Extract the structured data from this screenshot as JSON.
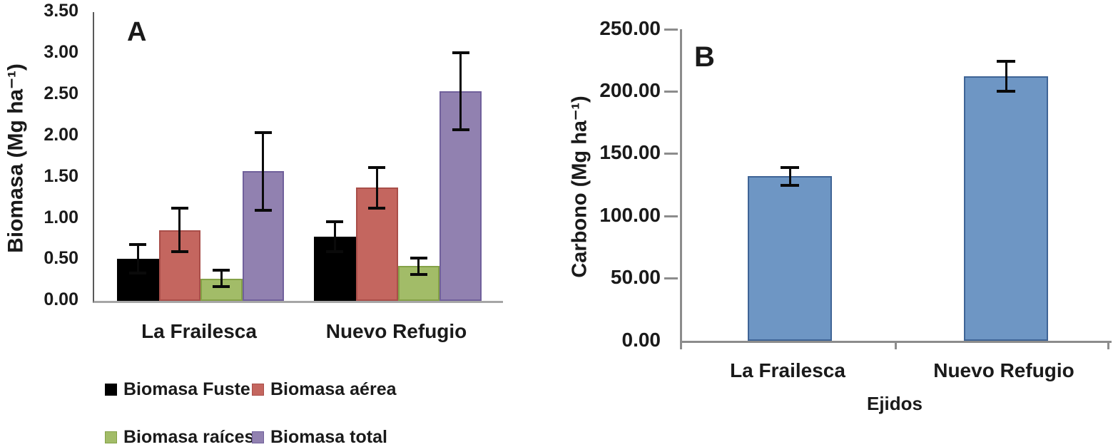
{
  "figure": {
    "background": "#ffffff",
    "text_color": "#1a1a1a"
  },
  "chart_data": [
    {
      "type": "bar",
      "panel_label": "A",
      "title": "",
      "ylabel": "Biomasa (Mg ha⁻¹)",
      "xlabel": "",
      "categories": [
        "La Frailesca",
        "Nuevo Refugio"
      ],
      "series": [
        {
          "name": "Biomasa Fuste",
          "color": "#000000",
          "border": "#000000",
          "values": [
            0.51,
            0.78
          ],
          "errors": [
            0.17,
            0.18
          ]
        },
        {
          "name": "Biomasa aérea",
          "color": "#C4665F",
          "border": "#A94E49",
          "values": [
            0.86,
            1.37
          ],
          "errors": [
            0.26,
            0.25
          ]
        },
        {
          "name": "Biomasa raíces",
          "color": "#A2BC68",
          "border": "#84A147",
          "values": [
            0.27,
            0.42
          ],
          "errors": [
            0.1,
            0.1
          ]
        },
        {
          "name": "Biomasa total",
          "color": "#9181B0",
          "border": "#70609B",
          "values": [
            1.57,
            2.54
          ],
          "errors": [
            0.47,
            0.47
          ]
        }
      ],
      "ylim": [
        0,
        3.5
      ],
      "ytick_step": 0.5,
      "ytick_labels": [
        "3.50",
        "3.00",
        "2.50",
        "2.00",
        "1.50",
        "1.00",
        "0.50",
        "0.00"
      ],
      "error_bars": true,
      "grid": false,
      "legend_position": "below-left"
    },
    {
      "type": "bar",
      "panel_label": "B",
      "title": "",
      "ylabel": "Carbono (Mg ha⁻¹)",
      "xlabel": "Ejidos",
      "categories": [
        "La Frailesca",
        "Nuevo Refugio"
      ],
      "series": [
        {
          "name": "Carbono",
          "color": "#6E96C4",
          "border": "#3F6496",
          "values": [
            132,
            212
          ],
          "errors": [
            7,
            12
          ]
        }
      ],
      "ylim": [
        0,
        250
      ],
      "ytick_step": 50,
      "ytick_labels": [
        "250.00",
        "200.00",
        "150.00",
        "100.00",
        "50.00",
        "0.00"
      ],
      "error_bars": true,
      "grid": false,
      "legend_position": "none"
    }
  ]
}
